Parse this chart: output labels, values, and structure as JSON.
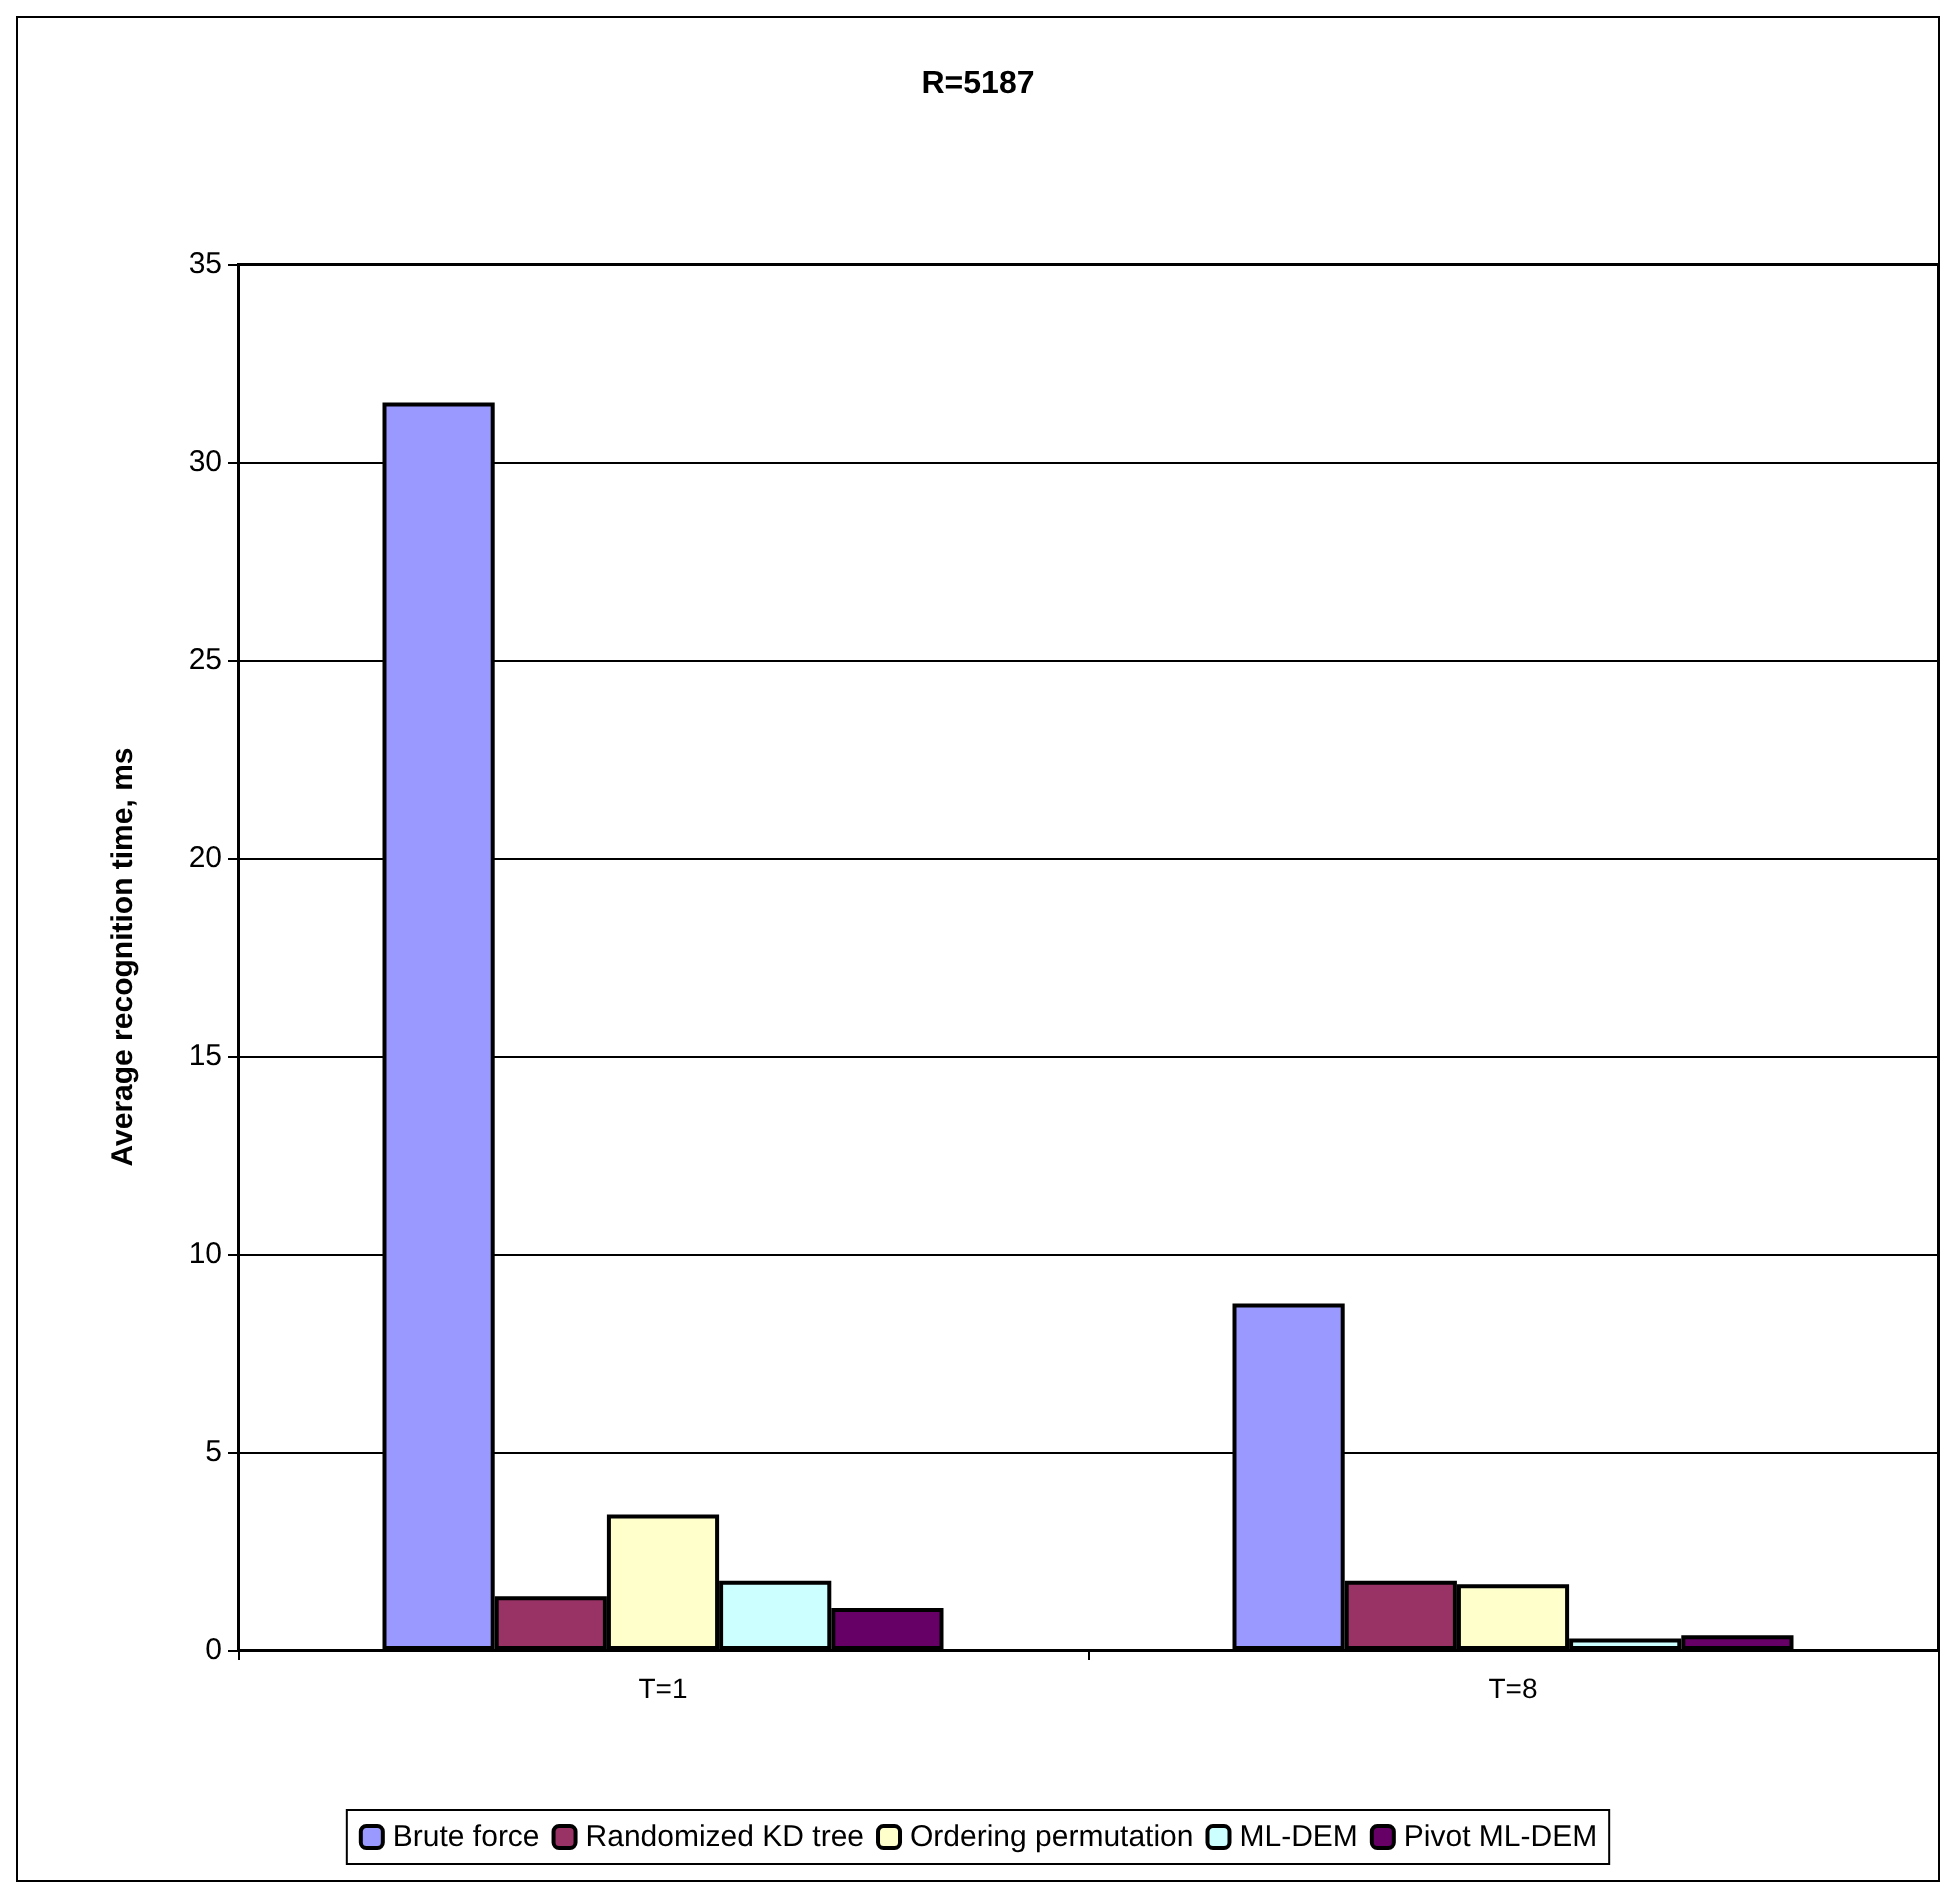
{
  "chart_data": {
    "type": "bar",
    "title": "R=5187",
    "ylabel": "Average recognition time, ms",
    "categories": [
      "T=1",
      "T=8"
    ],
    "series": [
      {
        "name": "Brute force",
        "color": "#9999ff",
        "values": [
          31.5,
          8.75
        ]
      },
      {
        "name": "Randomized KD tree",
        "color": "#993366",
        "values": [
          1.36,
          1.75
        ]
      },
      {
        "name": "Ordering permutation",
        "color": "#ffffcc",
        "values": [
          3.42,
          1.66
        ]
      },
      {
        "name": "ML-DEM",
        "color": "#ccffff",
        "values": [
          1.75,
          0.29
        ]
      },
      {
        "name": "Pivot ML-DEM",
        "color": "#660066",
        "values": [
          1.06,
          0.37
        ]
      }
    ],
    "ylim": [
      0,
      35
    ],
    "yticks": [
      0,
      5,
      10,
      15,
      20,
      25,
      30,
      35
    ],
    "grid": "y",
    "legend": "bottom"
  }
}
